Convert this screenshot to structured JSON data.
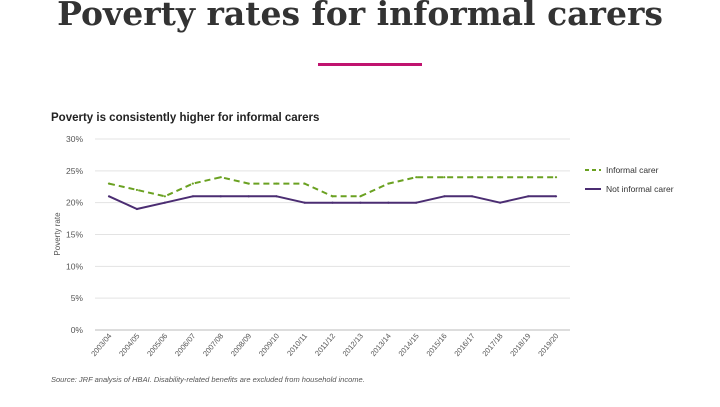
{
  "page": {
    "title": "Poverty rates for informal carers",
    "accent_color": "#c0136f"
  },
  "source_note": "Source: JRF analysis of HBAI. Disability-related benefits are excluded from household income.",
  "chart_data": {
    "type": "line",
    "title": "Poverty is consistently higher for informal carers",
    "xlabel": "",
    "ylabel": "Poverty rate",
    "ylim": [
      0,
      30
    ],
    "yticks": [
      "0%",
      "5%",
      "10%",
      "15%",
      "20%",
      "25%",
      "30%"
    ],
    "grid": true,
    "legend_position": "right",
    "categories": [
      "2003/04",
      "2004/05",
      "2005/06",
      "2006/07",
      "2007/08",
      "2008/09",
      "2009/10",
      "2010/11",
      "2011/12",
      "2012/13",
      "2013/14",
      "2014/15",
      "2015/16",
      "2016/17",
      "2017/18",
      "2018/19",
      "2019/20"
    ],
    "series": [
      {
        "name": "Informal carer",
        "color": "#6aa121",
        "style": "dashed",
        "values": [
          23,
          22,
          21,
          23,
          24,
          23,
          23,
          23,
          21,
          21,
          23,
          24,
          24,
          24,
          24,
          24,
          24
        ]
      },
      {
        "name": "Not informal carer",
        "color": "#4b2d72",
        "style": "solid",
        "values": [
          21,
          19,
          20,
          21,
          21,
          21,
          21,
          20,
          20,
          20,
          20,
          20,
          21,
          21,
          20,
          21,
          21
        ]
      }
    ]
  }
}
